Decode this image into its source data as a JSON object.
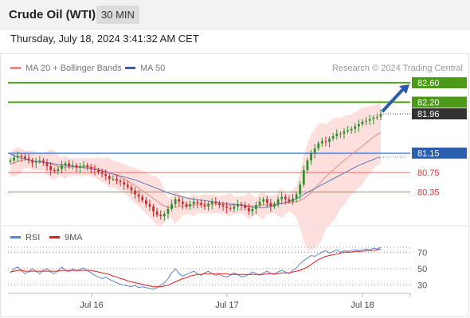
{
  "header": {
    "title": "Crude Oil (WTI)",
    "timeframe": "30 MIN"
  },
  "timestamp": "Thursday, July 18, 2024 3:41:32 AM CET",
  "legend": {
    "items": [
      {
        "label": "MA 20 + Bollinger Bands",
        "color": "#f08a84"
      },
      {
        "label": "MA 50",
        "color": "#3a5f9c"
      }
    ]
  },
  "copyright": "Research © 2024 Trading Central",
  "rsi_legend": {
    "items": [
      {
        "label": "RSI",
        "color": "#5b84d6"
      },
      {
        "label": "9MA",
        "color": "#e02020"
      }
    ]
  },
  "colors": {
    "resistance": "#4c9a18",
    "pivot": "#2b5fb0",
    "support": "#e06b6b",
    "last_price_bg": "#333333",
    "bollinger_fill": "#fde0de",
    "candle_up": "#2f8f2f",
    "candle_down": "#cc2b2b",
    "arrow": "#2a5caa"
  },
  "chart_data": {
    "type": "candlestick",
    "instrument": "Crude Oil (WTI)",
    "interval": "30 MIN",
    "x_ticks": [
      "Jul 16",
      "Jul 17",
      "Jul 18"
    ],
    "ylim": [
      79.8,
      82.75
    ],
    "levels": {
      "resistance": [
        82.6,
        82.2
      ],
      "pivot": 81.15,
      "support": [
        80.75,
        80.35
      ],
      "last": 81.96
    },
    "price_labels": [
      "82.60",
      "82.20",
      "81.96",
      "81.15",
      "80.75",
      "80.35"
    ],
    "close": [
      81.0,
      81.06,
      81.1,
      81.08,
      81.04,
      81.0,
      80.95,
      80.98,
      81.0,
      80.96,
      80.88,
      80.8,
      80.78,
      80.82,
      80.9,
      80.94,
      80.88,
      80.9,
      80.85,
      80.88,
      80.9,
      80.86,
      80.82,
      80.8,
      80.76,
      80.72,
      80.68,
      80.62,
      80.62,
      80.58,
      80.55,
      80.5,
      80.45,
      80.38,
      80.3,
      80.25,
      80.18,
      80.1,
      80.05,
      79.95,
      79.88,
      79.85,
      79.9,
      80.0,
      80.1,
      80.2,
      80.15,
      80.1,
      80.05,
      80.1,
      80.15,
      80.12,
      80.08,
      80.05,
      80.1,
      80.15,
      80.12,
      80.08,
      80.05,
      80.02,
      80.0,
      80.05,
      80.1,
      80.08,
      80.02,
      79.95,
      80.0,
      80.08,
      80.15,
      80.2,
      80.12,
      80.05,
      80.1,
      80.2,
      80.25,
      80.2,
      80.15,
      80.22,
      80.3,
      80.5,
      80.8,
      81.0,
      81.15,
      81.25,
      81.35,
      81.4,
      81.38,
      81.45,
      81.5,
      81.55,
      81.55,
      81.6,
      81.62,
      81.65,
      81.7,
      81.75,
      81.8,
      81.82,
      81.85,
      81.88,
      81.9,
      81.96
    ],
    "ma20": [
      80.92,
      80.95,
      80.98,
      81.0,
      81.02,
      81.02,
      81.0,
      80.98,
      80.98,
      80.97,
      80.95,
      80.93,
      80.9,
      80.88,
      80.86,
      80.86,
      80.86,
      80.87,
      80.87,
      80.87,
      80.87,
      80.87,
      80.86,
      80.85,
      80.83,
      80.8,
      80.78,
      80.75,
      80.72,
      80.69,
      80.66,
      80.62,
      80.58,
      80.53,
      80.48,
      80.43,
      80.38,
      80.32,
      80.27,
      80.21,
      80.16,
      80.1,
      80.06,
      80.03,
      80.03,
      80.04,
      80.05,
      80.06,
      80.06,
      80.07,
      80.08,
      80.09,
      80.1,
      80.1,
      80.1,
      80.1,
      80.1,
      80.09,
      80.09,
      80.08,
      80.08,
      80.08,
      80.08,
      80.08,
      80.07,
      80.06,
      80.06,
      80.06,
      80.07,
      80.08,
      80.08,
      80.09,
      80.1,
      80.11,
      80.12,
      80.13,
      80.13,
      80.14,
      80.15,
      80.17,
      80.21,
      80.27,
      80.34,
      80.42,
      80.5,
      80.58,
      80.66,
      80.73,
      80.8,
      80.87,
      80.94,
      81.0,
      81.06,
      81.12,
      81.18,
      81.24,
      81.3,
      81.36,
      81.42,
      81.48,
      81.53,
      81.58
    ],
    "ma50": [
      81.13,
      81.1,
      81.07,
      81.05,
      81.03,
      81.01,
      81.0,
      80.98,
      80.97,
      80.96,
      80.95,
      80.94,
      80.93,
      80.92,
      80.91,
      80.9,
      80.89,
      80.88,
      80.87,
      80.86,
      80.85,
      80.84,
      80.83,
      80.82,
      80.8,
      80.78,
      80.76,
      80.74,
      80.72,
      80.7,
      80.68,
      80.66,
      80.64,
      80.62,
      80.6,
      80.57,
      80.54,
      80.51,
      80.48,
      80.45,
      80.42,
      80.39,
      80.36,
      80.33,
      80.31,
      80.29,
      80.27,
      80.25,
      80.23,
      80.21,
      80.2,
      80.19,
      80.18,
      80.17,
      80.16,
      80.15,
      80.14,
      80.13,
      80.12,
      80.11,
      80.1,
      80.09,
      80.08,
      80.07,
      80.06,
      80.05,
      80.04,
      80.03,
      80.03,
      80.03,
      80.04,
      80.05,
      80.07,
      80.09,
      80.11,
      80.13,
      80.15,
      80.18,
      80.21,
      80.25,
      80.3,
      80.34,
      80.38,
      80.42,
      80.46,
      80.5,
      80.54,
      80.58,
      80.62,
      80.66,
      80.7,
      80.74,
      80.78,
      80.82,
      80.86,
      80.9,
      80.93,
      80.96,
      80.99,
      81.02,
      81.05,
      81.07
    ],
    "rsi": {
      "ylim": [
        20,
        80
      ],
      "ticks": [
        70,
        50,
        30
      ],
      "rsi": [
        45,
        50,
        52,
        48,
        44,
        46,
        50,
        47,
        44,
        48,
        50,
        46,
        44,
        48,
        52,
        48,
        46,
        50,
        47,
        49,
        51,
        48,
        45,
        42,
        40,
        38,
        40,
        37,
        35,
        33,
        31,
        30,
        29,
        28,
        30,
        27,
        28,
        27,
        26,
        25,
        27,
        30,
        33,
        38,
        45,
        50,
        44,
        41,
        43,
        45,
        47,
        44,
        42,
        45,
        47,
        44,
        42,
        43,
        41,
        40,
        42,
        45,
        43,
        40,
        41,
        43,
        46,
        44,
        42,
        45,
        47,
        44,
        43,
        46,
        48,
        46,
        44,
        48,
        51,
        56,
        60,
        63,
        66,
        65,
        68,
        70,
        72,
        69,
        71,
        73,
        70,
        72,
        71,
        72,
        73,
        72,
        73,
        74,
        73,
        75,
        74,
        76
      ],
      "ma9": [
        46,
        47,
        48,
        48,
        47,
        47,
        47,
        47,
        47,
        47,
        47,
        47,
        47,
        47,
        48,
        48,
        48,
        48,
        48,
        48,
        48,
        48,
        48,
        47,
        46,
        45,
        44,
        43,
        41,
        40,
        38,
        37,
        35,
        34,
        33,
        32,
        31,
        30,
        29,
        28,
        28,
        28,
        29,
        30,
        32,
        34,
        36,
        38,
        39,
        41,
        42,
        43,
        43,
        44,
        44,
        44,
        44,
        44,
        44,
        44,
        43,
        43,
        43,
        43,
        43,
        43,
        43,
        43,
        43,
        43,
        44,
        44,
        44,
        44,
        45,
        45,
        45,
        46,
        47,
        48,
        50,
        52,
        55,
        58,
        61,
        63,
        65,
        66,
        67,
        68,
        69,
        70,
        70,
        70,
        71,
        71,
        71,
        72,
        72,
        72,
        73,
        74
      ]
    }
  }
}
